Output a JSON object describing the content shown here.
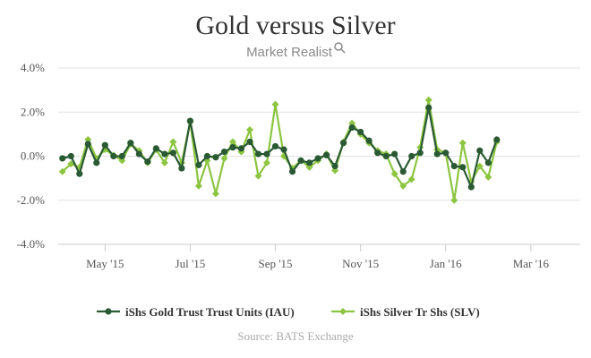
{
  "chart_data": {
    "type": "line",
    "title": "Gold versus Silver",
    "brand": "Market Realist",
    "source": "Source: BATS Exchange",
    "y_ticks": [
      "4.0%",
      "2.0%",
      "0.0%",
      "-2.0%",
      "-4.0%"
    ],
    "ylim": [
      -4,
      4
    ],
    "x_ticks": [
      "May '15",
      "Jul '15",
      "Sep '15",
      "Nov '15",
      "Jan '16",
      "Mar '16"
    ],
    "x_tick_positions": [
      5,
      15,
      25,
      35,
      45,
      55
    ],
    "x_range": [
      -0.5,
      60.8
    ],
    "legend_position": "bottom",
    "grid": "horizontal",
    "series": [
      {
        "name": "iShs Gold Trust Trust Units (IAU)",
        "color": "#2a5a34",
        "values": [
          -0.1,
          0.0,
          -0.8,
          0.55,
          -0.3,
          0.5,
          0.0,
          0.0,
          0.6,
          0.1,
          -0.25,
          0.35,
          0.1,
          0.15,
          -0.55,
          1.6,
          -0.4,
          0.0,
          -0.05,
          0.2,
          0.4,
          0.35,
          0.65,
          0.1,
          0.1,
          0.45,
          0.3,
          -0.7,
          -0.2,
          -0.3,
          -0.1,
          0.05,
          -0.45,
          0.6,
          1.3,
          1.1,
          0.7,
          0.15,
          0.0,
          0.1,
          -0.7,
          0.0,
          0.15,
          2.2,
          0.1,
          0.15,
          -0.45,
          -0.5,
          -1.4,
          0.25,
          -0.3,
          0.75
        ]
      },
      {
        "name": "iShs Silver Tr Shs (SLV)",
        "color": "#8cc540",
        "values": [
          -0.7,
          -0.35,
          -0.5,
          0.75,
          -0.1,
          0.3,
          0.05,
          -0.2,
          0.55,
          0.25,
          -0.3,
          0.3,
          -0.3,
          0.65,
          -0.3,
          1.55,
          -1.35,
          -0.2,
          -1.7,
          -0.1,
          0.65,
          0.2,
          1.2,
          -0.9,
          -0.3,
          2.35,
          0.0,
          -0.55,
          -0.2,
          -0.5,
          -0.2,
          0.1,
          -0.65,
          0.65,
          1.5,
          1.0,
          0.6,
          0.25,
          0.1,
          -0.8,
          -1.35,
          -1.05,
          0.4,
          2.55,
          0.3,
          0.15,
          -2.0,
          0.6,
          -1.15,
          -0.45,
          -0.95,
          0.65
        ]
      }
    ]
  }
}
